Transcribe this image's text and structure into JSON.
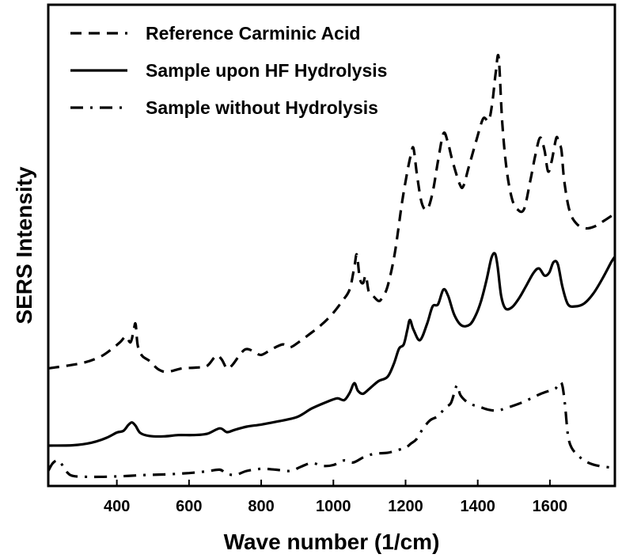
{
  "chart_data": {
    "type": "line",
    "title": "",
    "xlabel": "Wave number (1/cm)",
    "ylabel": "SERS Intensity",
    "xlim": [
      210,
      1780
    ],
    "ylim": [
      0,
      100
    ],
    "x_ticks": [
      400,
      600,
      800,
      1000,
      1200,
      1400,
      1600
    ],
    "y_ticks_shown": false,
    "grid": false,
    "legend_position": "top-left",
    "series": [
      {
        "name": "Reference Carminic Acid",
        "style": "dashed",
        "color": "#000000",
        "points": [
          [
            210,
            25.8
          ],
          [
            300,
            27.0
          ],
          [
            350,
            28.4
          ],
          [
            380,
            30.0
          ],
          [
            410,
            32.1
          ],
          [
            425,
            33.4
          ],
          [
            438,
            32.0
          ],
          [
            447,
            35.0
          ],
          [
            452,
            36.3
          ],
          [
            458,
            31.2
          ],
          [
            470,
            28.8
          ],
          [
            490,
            27.6
          ],
          [
            515,
            25.6
          ],
          [
            540,
            25.0
          ],
          [
            580,
            25.8
          ],
          [
            620,
            26.0
          ],
          [
            650,
            26.4
          ],
          [
            675,
            28.8
          ],
          [
            690,
            28.0
          ],
          [
            705,
            25.8
          ],
          [
            720,
            26.6
          ],
          [
            745,
            29.5
          ],
          [
            760,
            30.4
          ],
          [
            780,
            29.8
          ],
          [
            800,
            29.0
          ],
          [
            830,
            30.4
          ],
          [
            860,
            31.5
          ],
          [
            880,
            30.8
          ],
          [
            905,
            32.1
          ],
          [
            935,
            34.0
          ],
          [
            965,
            36.0
          ],
          [
            995,
            38.5
          ],
          [
            1025,
            41.8
          ],
          [
            1045,
            44.5
          ],
          [
            1058,
            49.8
          ],
          [
            1065,
            52.8
          ],
          [
            1073,
            47.2
          ],
          [
            1082,
            46.0
          ],
          [
            1090,
            47.8
          ],
          [
            1098,
            44.0
          ],
          [
            1110,
            43.0
          ],
          [
            1125,
            41.8
          ],
          [
            1135,
            42.5
          ],
          [
            1150,
            45.2
          ],
          [
            1170,
            53.0
          ],
          [
            1190,
            65.0
          ],
          [
            1205,
            72.5
          ],
          [
            1215,
            76.5
          ],
          [
            1222,
            78.0
          ],
          [
            1232,
            71.5
          ],
          [
            1245,
            65.0
          ],
          [
            1260,
            63.5
          ],
          [
            1275,
            67.5
          ],
          [
            1290,
            75.0
          ],
          [
            1305,
            81.5
          ],
          [
            1317,
            79.5
          ],
          [
            1330,
            75.0
          ],
          [
            1350,
            69.5
          ],
          [
            1360,
            69.0
          ],
          [
            1375,
            73.5
          ],
          [
            1395,
            79.5
          ],
          [
            1415,
            85.0
          ],
          [
            1430,
            84.5
          ],
          [
            1440,
            88.5
          ],
          [
            1450,
            96.0
          ],
          [
            1458,
            99.5
          ],
          [
            1468,
            84.0
          ],
          [
            1480,
            73.0
          ],
          [
            1495,
            66.0
          ],
          [
            1510,
            63.5
          ],
          [
            1528,
            63.5
          ],
          [
            1545,
            70.0
          ],
          [
            1560,
            76.5
          ],
          [
            1573,
            80.5
          ],
          [
            1585,
            77.5
          ],
          [
            1595,
            72.5
          ],
          [
            1605,
            75.0
          ],
          [
            1618,
            80.5
          ],
          [
            1625,
            79.0
          ],
          [
            1632,
            77.5
          ],
          [
            1640,
            70.0
          ],
          [
            1655,
            63.0
          ],
          [
            1675,
            60.0
          ],
          [
            1700,
            59.0
          ],
          [
            1725,
            59.5
          ],
          [
            1750,
            60.8
          ],
          [
            1780,
            62.5
          ]
        ]
      },
      {
        "name": "Sample upon HF Hydrolysis",
        "style": "solid",
        "color": "#000000",
        "points": [
          [
            210,
            7.5
          ],
          [
            280,
            7.6
          ],
          [
            330,
            8.2
          ],
          [
            370,
            9.3
          ],
          [
            400,
            10.6
          ],
          [
            418,
            11.0
          ],
          [
            432,
            12.4
          ],
          [
            442,
            13.0
          ],
          [
            452,
            12.2
          ],
          [
            465,
            10.5
          ],
          [
            490,
            9.8
          ],
          [
            530,
            9.7
          ],
          [
            570,
            10.0
          ],
          [
            610,
            10.0
          ],
          [
            650,
            10.3
          ],
          [
            685,
            11.6
          ],
          [
            705,
            10.7
          ],
          [
            725,
            11.2
          ],
          [
            760,
            12.0
          ],
          [
            800,
            12.5
          ],
          [
            850,
            13.3
          ],
          [
            900,
            14.3
          ],
          [
            940,
            16.3
          ],
          [
            980,
            17.8
          ],
          [
            1010,
            18.7
          ],
          [
            1030,
            18.3
          ],
          [
            1045,
            20.0
          ],
          [
            1058,
            22.3
          ],
          [
            1068,
            20.5
          ],
          [
            1082,
            19.8
          ],
          [
            1100,
            21.0
          ],
          [
            1125,
            22.8
          ],
          [
            1150,
            23.8
          ],
          [
            1168,
            27.0
          ],
          [
            1182,
            30.5
          ],
          [
            1195,
            31.5
          ],
          [
            1205,
            35.0
          ],
          [
            1212,
            37.3
          ],
          [
            1222,
            35.0
          ],
          [
            1240,
            32.5
          ],
          [
            1260,
            36.5
          ],
          [
            1275,
            40.5
          ],
          [
            1290,
            41.0
          ],
          [
            1305,
            44.5
          ],
          [
            1318,
            43.0
          ],
          [
            1335,
            38.5
          ],
          [
            1355,
            36.0
          ],
          [
            1378,
            36.2
          ],
          [
            1395,
            38.5
          ],
          [
            1410,
            42.0
          ],
          [
            1425,
            47.0
          ],
          [
            1438,
            52.0
          ],
          [
            1448,
            53.0
          ],
          [
            1455,
            50.0
          ],
          [
            1465,
            43.0
          ],
          [
            1477,
            40.0
          ],
          [
            1495,
            40.3
          ],
          [
            1515,
            42.5
          ],
          [
            1535,
            45.5
          ],
          [
            1555,
            48.5
          ],
          [
            1570,
            49.5
          ],
          [
            1585,
            47.8
          ],
          [
            1598,
            48.5
          ],
          [
            1610,
            51.0
          ],
          [
            1622,
            50.5
          ],
          [
            1635,
            45.0
          ],
          [
            1650,
            41.0
          ],
          [
            1670,
            40.5
          ],
          [
            1695,
            41.2
          ],
          [
            1720,
            43.5
          ],
          [
            1745,
            47.0
          ],
          [
            1770,
            51.0
          ],
          [
            1780,
            52.3
          ]
        ]
      },
      {
        "name": "Sample without Hydrolysis",
        "style": "dashdot",
        "color": "#000000",
        "points": [
          [
            210,
            1.5
          ],
          [
            222,
            3.3
          ],
          [
            236,
            4.0
          ],
          [
            248,
            3.0
          ],
          [
            262,
            1.2
          ],
          [
            280,
            0.3
          ],
          [
            330,
            0.1
          ],
          [
            400,
            0.2
          ],
          [
            470,
            0.5
          ],
          [
            540,
            0.7
          ],
          [
            600,
            1.0
          ],
          [
            650,
            1.4
          ],
          [
            685,
            1.8
          ],
          [
            705,
            0.8
          ],
          [
            730,
            0.6
          ],
          [
            760,
            1.5
          ],
          [
            800,
            2.0
          ],
          [
            840,
            1.8
          ],
          [
            880,
            1.5
          ],
          [
            910,
            2.5
          ],
          [
            940,
            3.4
          ],
          [
            970,
            2.7
          ],
          [
            1000,
            2.9
          ],
          [
            1030,
            4.0
          ],
          [
            1055,
            3.5
          ],
          [
            1085,
            4.8
          ],
          [
            1115,
            5.6
          ],
          [
            1150,
            5.8
          ],
          [
            1180,
            6.5
          ],
          [
            1200,
            7.0
          ],
          [
            1215,
            8.0
          ],
          [
            1230,
            9.0
          ],
          [
            1248,
            11.5
          ],
          [
            1268,
            13.5
          ],
          [
            1290,
            14.5
          ],
          [
            1310,
            16.5
          ],
          [
            1325,
            17.5
          ],
          [
            1335,
            20.0
          ],
          [
            1343,
            21.8
          ],
          [
            1352,
            19.5
          ],
          [
            1368,
            18.0
          ],
          [
            1385,
            17.2
          ],
          [
            1405,
            16.7
          ],
          [
            1430,
            16.0
          ],
          [
            1455,
            15.8
          ],
          [
            1475,
            16.3
          ],
          [
            1500,
            17.0
          ],
          [
            1525,
            17.8
          ],
          [
            1550,
            18.8
          ],
          [
            1575,
            19.8
          ],
          [
            1598,
            20.5
          ],
          [
            1615,
            21.0
          ],
          [
            1628,
            22.5
          ],
          [
            1635,
            21.5
          ],
          [
            1642,
            17.0
          ],
          [
            1650,
            10.0
          ],
          [
            1660,
            7.0
          ],
          [
            1680,
            5.0
          ],
          [
            1705,
            3.5
          ],
          [
            1735,
            2.7
          ],
          [
            1780,
            2.2
          ]
        ]
      }
    ]
  }
}
